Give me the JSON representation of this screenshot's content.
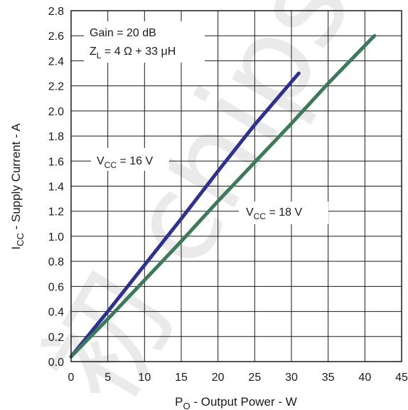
{
  "chart_data": {
    "type": "line",
    "xlabel": {
      "main": "P",
      "sub": "O",
      "rest": " - Output Power - W"
    },
    "ylabel": {
      "main": "I",
      "sub": "CC",
      "rest": " - Supply Current - A"
    },
    "xlim": [
      0,
      45
    ],
    "ylim": [
      0,
      2.8
    ],
    "x_ticks": [
      "0",
      "5",
      "10",
      "15",
      "20",
      "25",
      "30",
      "35",
      "40",
      "45"
    ],
    "y_ticks": [
      "0.0",
      "0.2",
      "0.4",
      "0.6",
      "0.8",
      "1.0",
      "1.2",
      "1.4",
      "1.6",
      "1.8",
      "2.0",
      "2.2",
      "2.4",
      "2.6",
      "2.8"
    ],
    "grid": true,
    "series": [
      {
        "name": "VCC = 16 V",
        "color": "#2e3192",
        "x": [
          0,
          5,
          10,
          15,
          20,
          25,
          31
        ],
        "y": [
          0.04,
          0.4,
          0.77,
          1.14,
          1.52,
          1.89,
          2.3
        ]
      },
      {
        "name": "VCC = 18 V",
        "color": "#3c7a5a",
        "x": [
          0,
          5,
          10,
          15,
          20,
          25,
          30,
          35,
          41.3
        ],
        "y": [
          0.04,
          0.34,
          0.65,
          0.96,
          1.28,
          1.59,
          1.9,
          2.22,
          2.6
        ]
      }
    ],
    "annotations": {
      "gain": "Gain = 20 dB",
      "zl": {
        "main": "Z",
        "sub": "L",
        "rest": " = 4 Ω + 33 μH"
      },
      "vcc16": {
        "main": "V",
        "sub": "CC",
        "rest": " = 16 V"
      },
      "vcc18": {
        "main": "V",
        "sub": "CC",
        "rest": " = 18 V"
      }
    },
    "watermark": "初 chips"
  }
}
